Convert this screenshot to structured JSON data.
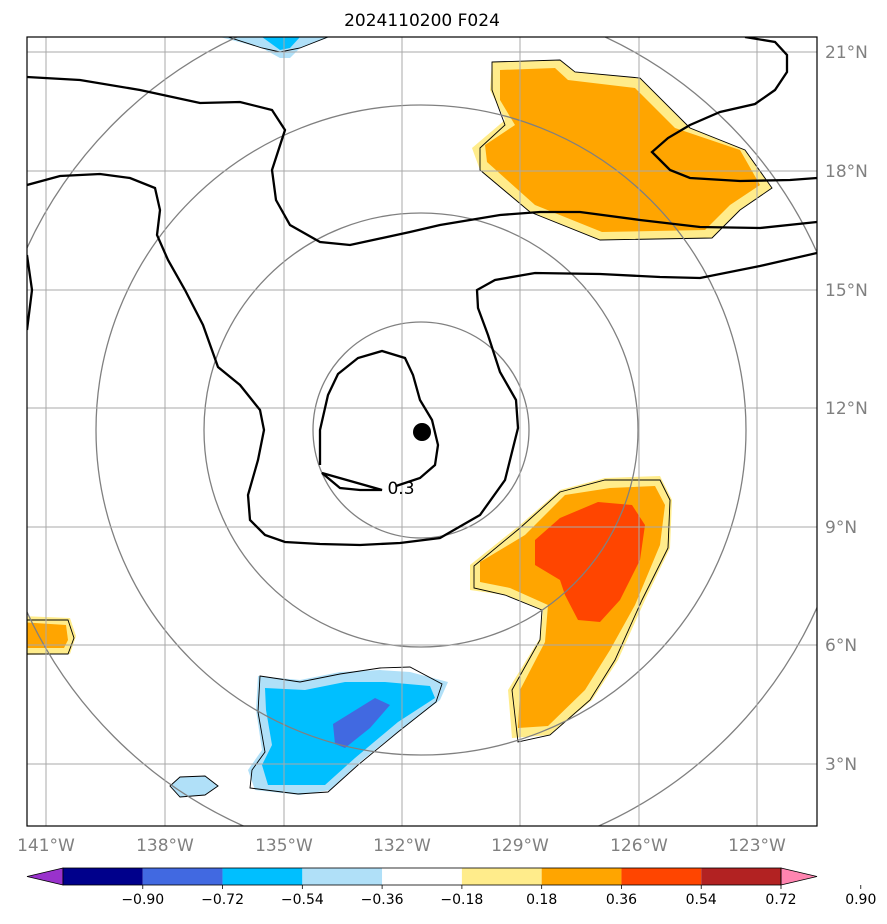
{
  "title": "2024110200 F024",
  "lon_ticks": [
    "141°W",
    "138°W",
    "135°W",
    "132°W",
    "129°W",
    "126°W",
    "123°W"
  ],
  "lat_ticks": [
    "21°N",
    "18°N",
    "15°N",
    "12°N",
    "9°N",
    "6°N",
    "3°N"
  ],
  "contour_label": "0.3",
  "colorbar": {
    "labels": [
      "−0.90",
      "−0.72",
      "−0.54",
      "−0.36",
      "−0.18",
      "0.18",
      "0.36",
      "0.54",
      "0.72",
      "0.90"
    ],
    "colors": [
      "#9932cc",
      "#00008b",
      "#4169e1",
      "#00bfff",
      "#b0e0f8",
      "#ffffff",
      "#ffec8b",
      "#ffa500",
      "#ff4500",
      "#b22222",
      "#ff85b0"
    ]
  },
  "center_marker": {
    "lon": "131.5°W",
    "lat": "11.5°N"
  }
}
